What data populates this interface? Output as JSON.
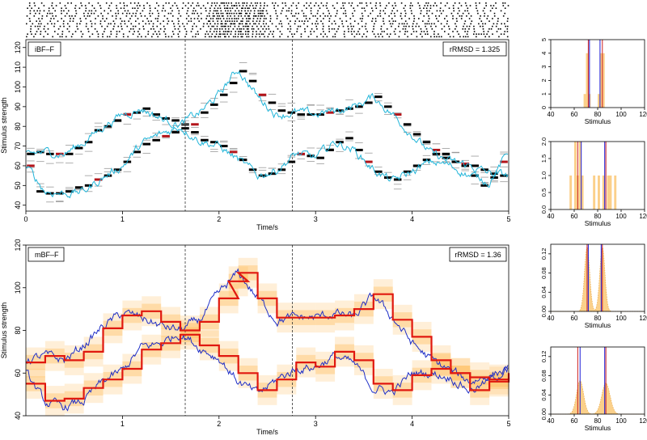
{
  "chart_data": [
    {
      "type": "raster",
      "panel": "spike-raster",
      "x_range": [
        0,
        5
      ],
      "rows": 14,
      "note_density": "spike density increases around t = 1.9 to 2.4"
    },
    {
      "type": "line",
      "panel": "iBF-F",
      "title": "iBF–F",
      "annotation": "rRMSD = 1.325",
      "xlabel": "Time/s",
      "ylabel": "Stimulus strength",
      "xlim": [
        0,
        5
      ],
      "ylim": [
        37,
        124
      ],
      "xticks": [
        "0",
        "1",
        "2",
        "3",
        "4",
        "5"
      ],
      "yticks": [
        "40",
        "50",
        "60",
        "70",
        "80",
        "90",
        "100",
        "110",
        "120"
      ],
      "vlines": [
        1.65,
        2.76
      ],
      "series": [
        {
          "color": "#22b5d9",
          "x": [
            0,
            0.2,
            0.4,
            0.6,
            0.8,
            1.0,
            1.2,
            1.4,
            1.6,
            1.8,
            2.0,
            2.1,
            2.2,
            2.4,
            2.6,
            2.8,
            3.0,
            3.2,
            3.4,
            3.6,
            3.8,
            4.0,
            4.2,
            4.4,
            4.6,
            4.8,
            5.0
          ],
          "y": [
            66,
            67,
            66,
            72,
            80,
            86,
            89,
            84,
            81,
            87,
            96,
            103,
            109,
            95,
            86,
            87,
            86,
            88,
            90,
            95,
            86,
            76,
            66,
            62,
            60,
            56,
            55
          ]
        },
        {
          "color": "#22b5d9",
          "x": [
            0,
            0.2,
            0.4,
            0.6,
            0.8,
            1.0,
            1.2,
            1.4,
            1.6,
            1.8,
            2.0,
            2.2,
            2.4,
            2.6,
            2.8,
            3.0,
            3.2,
            3.4,
            3.6,
            3.8,
            4.0,
            4.2,
            4.4,
            4.6,
            4.8,
            5.0
          ],
          "y": [
            60,
            47,
            46,
            47,
            54,
            60,
            71,
            76,
            80,
            73,
            70,
            63,
            55,
            58,
            66,
            64,
            72,
            68,
            58,
            52,
            57,
            62,
            60,
            55,
            52,
            67
          ]
        }
      ],
      "segments_color_main": "#000000",
      "segments_color_alt": "#b3141a",
      "segments_color_ghost": "#9a9a9a",
      "segment_width": 0.1,
      "segments": {
        "upper": [
          {
            "x": 0,
            "y": 66
          },
          {
            "x": 0.1,
            "y": 67
          },
          {
            "x": 0.2,
            "y": 66
          },
          {
            "x": 0.3,
            "y": 66
          },
          {
            "x": 0.4,
            "y": 66
          },
          {
            "x": 0.5,
            "y": 69
          },
          {
            "x": 0.6,
            "y": 72
          },
          {
            "x": 0.7,
            "y": 78
          },
          {
            "x": 0.8,
            "y": 80
          },
          {
            "x": 0.9,
            "y": 83
          },
          {
            "x": 1.0,
            "y": 86
          },
          {
            "x": 1.1,
            "y": 87
          },
          {
            "x": 1.2,
            "y": 89
          },
          {
            "x": 1.3,
            "y": 86
          },
          {
            "x": 1.4,
            "y": 84
          },
          {
            "x": 1.5,
            "y": 83
          },
          {
            "x": 1.6,
            "y": 81
          },
          {
            "x": 1.7,
            "y": 81
          },
          {
            "x": 1.8,
            "y": 87
          },
          {
            "x": 1.9,
            "y": 91
          },
          {
            "x": 2.0,
            "y": 96
          },
          {
            "x": 2.1,
            "y": 102
          },
          {
            "x": 2.2,
            "y": 108
          },
          {
            "x": 2.3,
            "y": 103
          },
          {
            "x": 2.4,
            "y": 96
          },
          {
            "x": 2.5,
            "y": 92
          },
          {
            "x": 2.6,
            "y": 88
          },
          {
            "x": 2.7,
            "y": 87
          },
          {
            "x": 2.8,
            "y": 86
          },
          {
            "x": 2.9,
            "y": 86
          },
          {
            "x": 3.0,
            "y": 86
          },
          {
            "x": 3.1,
            "y": 87
          },
          {
            "x": 3.2,
            "y": 88
          },
          {
            "x": 3.3,
            "y": 89
          },
          {
            "x": 3.4,
            "y": 90
          },
          {
            "x": 3.5,
            "y": 92
          },
          {
            "x": 3.6,
            "y": 95
          },
          {
            "x": 3.7,
            "y": 90
          },
          {
            "x": 3.8,
            "y": 86
          },
          {
            "x": 3.9,
            "y": 81
          },
          {
            "x": 4.0,
            "y": 76
          },
          {
            "x": 4.1,
            "y": 72
          },
          {
            "x": 4.2,
            "y": 66
          },
          {
            "x": 4.3,
            "y": 64
          },
          {
            "x": 4.4,
            "y": 62
          },
          {
            "x": 4.5,
            "y": 61
          },
          {
            "x": 4.6,
            "y": 60
          },
          {
            "x": 4.7,
            "y": 58
          },
          {
            "x": 4.8,
            "y": 56
          },
          {
            "x": 4.9,
            "y": 55
          }
        ],
        "lower": [
          {
            "x": 0,
            "y": 60
          },
          {
            "x": 0.1,
            "y": 47
          },
          {
            "x": 0.2,
            "y": 46
          },
          {
            "x": 0.3,
            "y": 46
          },
          {
            "x": 0.4,
            "y": 47
          },
          {
            "x": 0.5,
            "y": 49
          },
          {
            "x": 0.6,
            "y": 50
          },
          {
            "x": 0.7,
            "y": 53
          },
          {
            "x": 0.8,
            "y": 55
          },
          {
            "x": 0.9,
            "y": 58
          },
          {
            "x": 1.0,
            "y": 62
          },
          {
            "x": 1.1,
            "y": 67
          },
          {
            "x": 1.2,
            "y": 71
          },
          {
            "x": 1.3,
            "y": 73
          },
          {
            "x": 1.4,
            "y": 75
          },
          {
            "x": 1.5,
            "y": 77
          },
          {
            "x": 1.6,
            "y": 79
          },
          {
            "x": 1.7,
            "y": 77
          },
          {
            "x": 1.8,
            "y": 73
          },
          {
            "x": 1.9,
            "y": 72
          },
          {
            "x": 2.0,
            "y": 70
          },
          {
            "x": 2.1,
            "y": 67
          },
          {
            "x": 2.2,
            "y": 63
          },
          {
            "x": 2.3,
            "y": 58
          },
          {
            "x": 2.4,
            "y": 55
          },
          {
            "x": 2.5,
            "y": 56
          },
          {
            "x": 2.6,
            "y": 58
          },
          {
            "x": 2.7,
            "y": 62
          },
          {
            "x": 2.8,
            "y": 66
          },
          {
            "x": 2.9,
            "y": 65
          },
          {
            "x": 3.0,
            "y": 64
          },
          {
            "x": 3.1,
            "y": 68
          },
          {
            "x": 3.2,
            "y": 72
          },
          {
            "x": 3.3,
            "y": 74
          },
          {
            "x": 3.4,
            "y": 68
          },
          {
            "x": 3.5,
            "y": 62
          },
          {
            "x": 3.6,
            "y": 57
          },
          {
            "x": 3.7,
            "y": 54
          },
          {
            "x": 3.8,
            "y": 53
          },
          {
            "x": 3.9,
            "y": 57
          },
          {
            "x": 4.0,
            "y": 60
          },
          {
            "x": 4.1,
            "y": 63
          },
          {
            "x": 4.2,
            "y": 68
          },
          {
            "x": 4.3,
            "y": 66
          },
          {
            "x": 4.4,
            "y": 62
          },
          {
            "x": 4.5,
            "y": 60
          },
          {
            "x": 4.6,
            "y": 55
          },
          {
            "x": 4.7,
            "y": 50
          },
          {
            "x": 4.8,
            "y": 54
          },
          {
            "x": 4.9,
            "y": 62
          }
        ]
      }
    },
    {
      "type": "bar",
      "panel": "iBF-F-hist-t1",
      "xlabel": "Stimulus",
      "xlim": [
        40,
        120
      ],
      "ylim": [
        0,
        5
      ],
      "xticks": [
        "40",
        "60",
        "80",
        "100",
        "120"
      ],
      "yticks": [
        "0",
        "1",
        "2",
        "3",
        "4",
        "5"
      ],
      "bars": [
        {
          "x": 68,
          "width": 2,
          "value": 1
        },
        {
          "x": 70,
          "width": 2,
          "value": 4
        },
        {
          "x": 72,
          "width": 2,
          "value": 1
        },
        {
          "x": 80,
          "width": 2,
          "value": 1
        },
        {
          "x": 82,
          "width": 2,
          "value": 4
        },
        {
          "x": 84,
          "width": 2,
          "value": 4
        }
      ],
      "vlines": [
        {
          "x": 72,
          "color": "#cc1f1f"
        },
        {
          "x": 73,
          "color": "#1a1ad6"
        },
        {
          "x": 82,
          "color": "#1a1ad6"
        },
        {
          "x": 84,
          "color": "#cc1f1f"
        }
      ],
      "bar_color": "#fbd08a"
    },
    {
      "type": "bar",
      "panel": "iBF-F-hist-t2",
      "xlabel": "Stimulus",
      "xlim": [
        40,
        120
      ],
      "ylim": [
        0,
        2
      ],
      "xticks": [
        "40",
        "60",
        "80",
        "100",
        "120"
      ],
      "yticks": [
        "0.0",
        "0.5",
        "1.0",
        "1.5",
        "2.0"
      ],
      "bars": [
        {
          "x": 56,
          "width": 2,
          "value": 1
        },
        {
          "x": 60,
          "width": 2,
          "value": 2
        },
        {
          "x": 62,
          "width": 2,
          "value": 1
        },
        {
          "x": 64,
          "width": 2,
          "value": 2
        },
        {
          "x": 66,
          "width": 2,
          "value": 1
        },
        {
          "x": 76,
          "width": 2,
          "value": 1
        },
        {
          "x": 80,
          "width": 2,
          "value": 1
        },
        {
          "x": 84,
          "width": 2,
          "value": 1
        },
        {
          "x": 88,
          "width": 2,
          "value": 1
        },
        {
          "x": 90,
          "width": 2,
          "value": 1
        },
        {
          "x": 94,
          "width": 2,
          "value": 1
        }
      ],
      "vlines": [
        {
          "x": 63,
          "color": "#cc1f1f"
        },
        {
          "x": 66,
          "color": "#1a1ad6"
        },
        {
          "x": 86,
          "color": "#1a1ad6"
        },
        {
          "x": 87,
          "color": "#cc1f1f"
        }
      ],
      "bar_color": "#fbd08a"
    },
    {
      "type": "line",
      "panel": "mBF-F",
      "title": "mBF–F",
      "annotation": "rRMSD = 1.36",
      "xlabel": "Time/s",
      "ylabel": "Stimulus strength",
      "xlim": [
        0,
        5
      ],
      "ylim": [
        40,
        120
      ],
      "xticks": [
        "1",
        "2",
        "3",
        "4",
        "5"
      ],
      "yticks": [
        "40",
        "60",
        "80",
        "100",
        "120"
      ],
      "vlines": [
        1.65,
        2.76
      ],
      "series": [
        {
          "color": "#1f2fc7",
          "x": [
            0,
            0.2,
            0.4,
            0.6,
            0.8,
            1.0,
            1.2,
            1.4,
            1.6,
            1.8,
            2.0,
            2.2,
            2.4,
            2.6,
            2.8,
            3.0,
            3.2,
            3.4,
            3.6,
            3.8,
            4.0,
            4.2,
            4.4,
            4.6,
            4.8,
            5.0
          ],
          "y": [
            66,
            68,
            66,
            73,
            82,
            88,
            86,
            82,
            80,
            85,
            97,
            107,
            95,
            85,
            86,
            86,
            88,
            86,
            96,
            86,
            74,
            66,
            61,
            56,
            59,
            62
          ]
        },
        {
          "color": "#1f2fc7",
          "x": [
            0,
            0.2,
            0.4,
            0.6,
            0.8,
            1.0,
            1.2,
            1.4,
            1.6,
            1.8,
            2.0,
            2.2,
            2.4,
            2.6,
            2.8,
            3.0,
            3.2,
            3.4,
            3.6,
            3.8,
            4.0,
            4.2,
            4.4,
            4.6,
            4.8,
            5.0
          ],
          "y": [
            60,
            46,
            44,
            47,
            56,
            61,
            72,
            74,
            79,
            72,
            67,
            56,
            50,
            57,
            62,
            63,
            68,
            64,
            53,
            51,
            60,
            60,
            58,
            52,
            56,
            63
          ]
        },
        {
          "color": "#e0180f",
          "x": [
            0,
            0.2,
            0.4,
            0.6,
            0.8,
            1.0,
            1.2,
            1.4,
            1.6,
            1.8,
            2.0,
            2.1,
            2.2,
            2.4,
            2.6,
            2.8,
            3.0,
            3.2,
            3.4,
            3.6,
            3.8,
            4.0,
            4.2,
            4.4,
            4.6,
            4.8,
            5.0
          ],
          "y": [
            65,
            68,
            66,
            70,
            81,
            87,
            89,
            84,
            80,
            84,
            95,
            103,
            107,
            95,
            86,
            86,
            86,
            87,
            90,
            97,
            85,
            77,
            66,
            60,
            58,
            57,
            58
          ]
        },
        {
          "color": "#e0180f",
          "x": [
            0,
            0.2,
            0.4,
            0.6,
            0.8,
            1.0,
            1.2,
            1.4,
            1.6,
            1.8,
            2.0,
            2.2,
            2.4,
            2.6,
            2.8,
            3.0,
            3.2,
            3.4,
            3.6,
            3.8,
            4.0,
            4.2,
            4.4,
            4.6,
            4.8,
            5.0
          ],
          "y": [
            55,
            47,
            48,
            53,
            57,
            62,
            71,
            74,
            78,
            73,
            68,
            60,
            52,
            57,
            65,
            63,
            70,
            66,
            55,
            52,
            59,
            62,
            60,
            52,
            56,
            60
          ]
        }
      ],
      "band_color": "#ffb84d"
    },
    {
      "type": "area",
      "panel": "mBF-F-density-t1",
      "xlabel": "Stimulus",
      "xlim": [
        40,
        120
      ],
      "ylim": [
        0,
        0.14
      ],
      "xticks": [
        "40",
        "60",
        "80",
        "100",
        "120"
      ],
      "yticks": [
        "0.00",
        "0.04",
        "0.08",
        "0.12"
      ],
      "peaks": [
        {
          "mu": 71,
          "sigma": 2.2,
          "amp": 0.135
        },
        {
          "mu": 84,
          "sigma": 2.2,
          "amp": 0.135
        }
      ],
      "vlines": [
        {
          "x": 71,
          "color": "#cc1f1f"
        },
        {
          "x": 72,
          "color": "#1a1ad6"
        },
        {
          "x": 83,
          "color": "#1a1ad6"
        },
        {
          "x": 84,
          "color": "#cc1f1f"
        }
      ],
      "area_color": "#fbd08a"
    },
    {
      "type": "area",
      "panel": "mBF-F-density-t2",
      "xlabel": "Stimulus",
      "xlim": [
        40,
        120
      ],
      "ylim": [
        0,
        0.14
      ],
      "xticks": [
        "40",
        "60",
        "80",
        "100",
        "120"
      ],
      "yticks": [
        "0.00",
        "0.04",
        "0.08",
        "0.12"
      ],
      "peaks": [
        {
          "mu": 65,
          "sigma": 3,
          "amp": 0.07
        },
        {
          "mu": 87,
          "sigma": 3.5,
          "amp": 0.065
        }
      ],
      "vlines": [
        {
          "x": 63,
          "color": "#cc1f1f"
        },
        {
          "x": 65,
          "color": "#1a1ad6"
        },
        {
          "x": 86,
          "color": "#1a1ad6"
        },
        {
          "x": 87,
          "color": "#cc1f1f"
        }
      ],
      "area_color": "#fbd08a"
    }
  ]
}
